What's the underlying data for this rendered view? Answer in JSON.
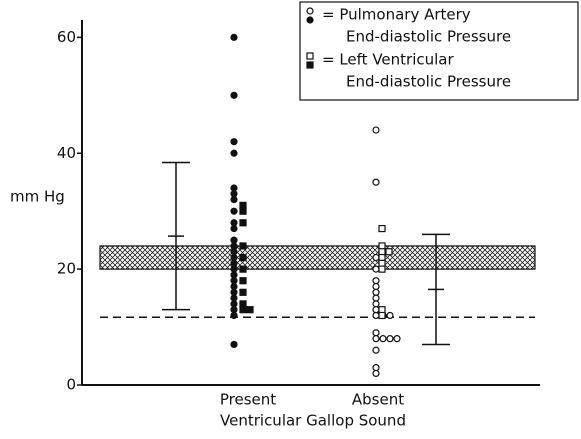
{
  "chart_data": {
    "type": "strip",
    "ylabel": "mm Hg",
    "xlabel": "Ventricular Gallop Sound",
    "categories": [
      "Present",
      "Absent"
    ],
    "ylim": [
      0,
      63
    ],
    "yticks": [
      0,
      20,
      40,
      60
    ],
    "color": "#111111",
    "series": [
      {
        "name": [
          "= Pulmonary Artery",
          "End-diastolic Pressure"
        ],
        "marker": "circle",
        "values": [
          [
            60,
            50,
            42,
            40,
            34,
            33,
            32,
            30,
            28,
            27,
            25,
            24,
            23,
            22,
            21,
            20,
            19,
            18,
            17,
            16,
            15,
            14,
            13,
            12,
            7
          ],
          [
            44,
            35,
            22,
            20,
            18,
            17,
            16,
            15,
            14,
            13,
            12,
            12,
            12,
            9,
            8,
            8,
            8,
            8,
            6,
            3,
            2
          ]
        ]
      },
      {
        "name": [
          "= Left Ventricular",
          "End-diastolic Pressure"
        ],
        "marker": "square",
        "values": [
          [
            31,
            30,
            28,
            24,
            22,
            20,
            18,
            16,
            14,
            13,
            13
          ],
          [
            27,
            24,
            23,
            23,
            22,
            21,
            20,
            13,
            12
          ]
        ]
      }
    ],
    "summary": [
      {
        "mean": 25.7,
        "sd": 12.7
      },
      {
        "mean": 16.5,
        "sd": 9.5
      }
    ],
    "reference_band": [
      20,
      24
    ],
    "reference_line": 11.7
  }
}
